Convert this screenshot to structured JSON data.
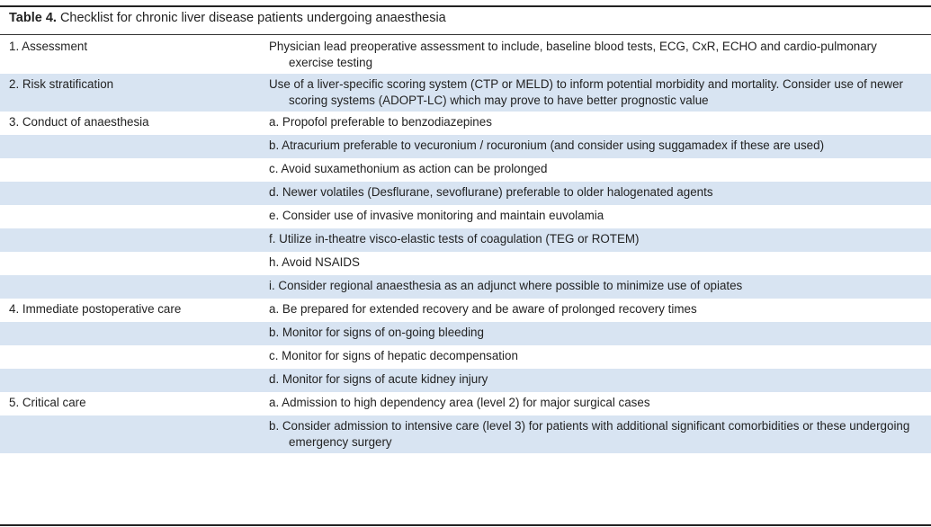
{
  "caption": {
    "label": "Table 4.",
    "text": "Checklist for chronic liver disease patients undergoing anaesthesia"
  },
  "rows": [
    {
      "category": "1. Assessment",
      "item": "Physician lead preoperative assessment to include, baseline blood tests, ECG, CxR, ECHO and cardio-pulmonary exercise testing"
    },
    {
      "category": "2. Risk stratification",
      "item": "Use of a liver-specific scoring system (CTP or MELD) to inform potential morbidity and mortality. Consider use of newer scoring systems (ADOPT-LC) which may prove to have better prognostic value"
    },
    {
      "category": "3. Conduct of anaesthesia",
      "item": "a. Propofol preferable to benzodiazepines"
    },
    {
      "category": "",
      "item": "b. Atracurium preferable to vecuronium / rocuronium (and consider using suggamadex if these are used)"
    },
    {
      "category": "",
      "item": "c. Avoid suxamethonium as action can be prolonged"
    },
    {
      "category": "",
      "item": "d. Newer volatiles (Desflurane, sevoflurane) preferable to older halogenated agents"
    },
    {
      "category": "",
      "item": "e. Consider use of invasive monitoring and maintain euvolamia"
    },
    {
      "category": "",
      "item": "f. Utilize in-theatre visco-elastic tests of coagulation (TEG or ROTEM)"
    },
    {
      "category": "",
      "item": "h. Avoid NSAIDS"
    },
    {
      "category": "",
      "item": "i. Consider regional anaesthesia as an adjunct where possible to minimize use of opiates"
    },
    {
      "category": "4. Immediate postoperative care",
      "item": "a. Be prepared for extended recovery and be aware of prolonged recovery times"
    },
    {
      "category": "",
      "item": "b. Monitor for signs of on-going bleeding"
    },
    {
      "category": "",
      "item": "c. Monitor for signs of hepatic decompensation"
    },
    {
      "category": "",
      "item": "d. Monitor for signs of acute kidney injury"
    },
    {
      "category": "5. Critical care",
      "item": "a. Admission to high dependency area (level 2) for major surgical cases"
    },
    {
      "category": "",
      "item": "b. Consider admission to intensive care (level 3) for patients with additional significant comorbidities or these undergoing emergency surgery"
    }
  ],
  "colors": {
    "shade": "#d8e4f2"
  }
}
